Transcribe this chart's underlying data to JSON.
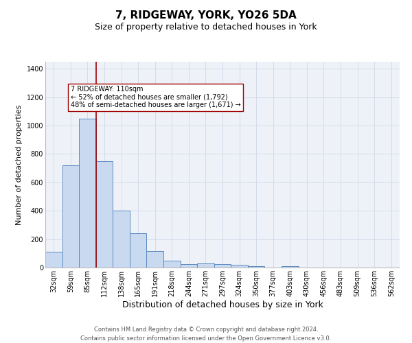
{
  "title1": "7, RIDGEWAY, YORK, YO26 5DA",
  "title2": "Size of property relative to detached houses in York",
  "xlabel": "Distribution of detached houses by size in York",
  "ylabel": "Number of detached properties",
  "categories": [
    "32sqm",
    "59sqm",
    "85sqm",
    "112sqm",
    "138sqm",
    "165sqm",
    "191sqm",
    "218sqm",
    "244sqm",
    "271sqm",
    "297sqm",
    "324sqm",
    "350sqm",
    "377sqm",
    "403sqm",
    "430sqm",
    "456sqm",
    "483sqm",
    "509sqm",
    "536sqm",
    "562sqm"
  ],
  "values": [
    110,
    720,
    1050,
    750,
    400,
    240,
    115,
    47,
    25,
    30,
    25,
    18,
    10,
    0,
    12,
    0,
    0,
    0,
    0,
    0,
    0
  ],
  "bar_color": "#c9d9f0",
  "bar_edge_color": "#5a8abf",
  "vline_x_index": 3,
  "vline_color": "#a00000",
  "annotation_text": "7 RIDGEWAY: 110sqm\n← 52% of detached houses are smaller (1,792)\n48% of semi-detached houses are larger (1,671) →",
  "annotation_box_color": "white",
  "annotation_box_edge": "#a00000",
  "ylim": [
    0,
    1450
  ],
  "yticks": [
    0,
    200,
    400,
    600,
    800,
    1000,
    1200,
    1400
  ],
  "grid_color": "#d0d8e8",
  "background_color": "#eef2f8",
  "footnote": "Contains HM Land Registry data © Crown copyright and database right 2024.\nContains public sector information licensed under the Open Government Licence v3.0.",
  "title1_fontsize": 11,
  "title2_fontsize": 9,
  "xlabel_fontsize": 9,
  "ylabel_fontsize": 8,
  "tick_fontsize": 7,
  "footnote_fontsize": 6,
  "annot_fontsize": 7
}
